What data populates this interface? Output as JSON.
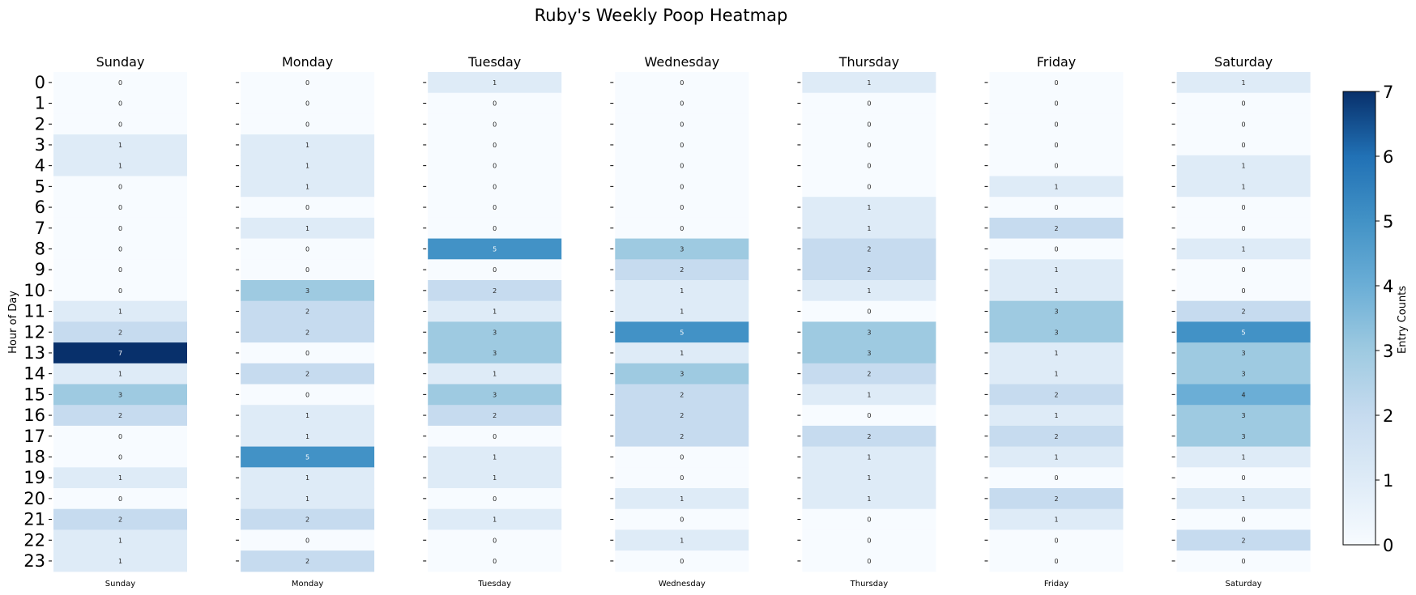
{
  "chart_data": {
    "type": "heatmap",
    "title": "Ruby's Weekly Poop Heatmap",
    "ylabel": "Hour of Day",
    "colorbar_label": "Entry Counts",
    "colorbar_range": [
      0,
      7
    ],
    "colorbar_ticks": [
      "0",
      "1",
      "2",
      "3",
      "4",
      "5",
      "6",
      "7"
    ],
    "hours": [
      "0",
      "1",
      "2",
      "3",
      "4",
      "5",
      "6",
      "7",
      "8",
      "9",
      "10",
      "11",
      "12",
      "13",
      "14",
      "15",
      "16",
      "17",
      "18",
      "19",
      "20",
      "21",
      "22",
      "23"
    ],
    "colormap": [
      "#f7fbff",
      "#deebf7",
      "#c6dbef",
      "#9ecae1",
      "#6baed6",
      "#4292c6",
      "#2171b5",
      "#08306b"
    ],
    "days": [
      {
        "name": "Sunday",
        "x_label": "Sunday",
        "values": [
          0,
          0,
          0,
          1,
          1,
          0,
          0,
          0,
          0,
          0,
          0,
          1,
          2,
          7,
          1,
          3,
          2,
          0,
          0,
          1,
          0,
          2,
          1,
          1
        ]
      },
      {
        "name": "Monday",
        "x_label": "Monday",
        "values": [
          0,
          0,
          0,
          1,
          1,
          1,
          0,
          1,
          0,
          0,
          3,
          2,
          2,
          0,
          2,
          0,
          1,
          1,
          5,
          1,
          1,
          2,
          0,
          2
        ]
      },
      {
        "name": "Tuesday",
        "x_label": "Tuesday",
        "values": [
          1,
          0,
          0,
          0,
          0,
          0,
          0,
          0,
          5,
          0,
          2,
          1,
          3,
          3,
          1,
          3,
          2,
          0,
          1,
          1,
          0,
          1,
          0,
          0
        ]
      },
      {
        "name": "Wednesday",
        "x_label": "Wednesday",
        "values": [
          0,
          0,
          0,
          0,
          0,
          0,
          0,
          0,
          3,
          2,
          1,
          1,
          5,
          1,
          3,
          2,
          2,
          2,
          0,
          0,
          1,
          0,
          1,
          0
        ]
      },
      {
        "name": "Thursday",
        "x_label": "Thursday",
        "values": [
          1,
          0,
          0,
          0,
          0,
          0,
          1,
          1,
          2,
          2,
          1,
          0,
          3,
          3,
          2,
          1,
          0,
          2,
          1,
          1,
          1,
          0,
          0,
          0
        ]
      },
      {
        "name": "Friday",
        "x_label": "Friday",
        "values": [
          0,
          0,
          0,
          0,
          0,
          1,
          0,
          2,
          0,
          1,
          1,
          3,
          3,
          1,
          1,
          2,
          1,
          2,
          1,
          0,
          2,
          1,
          0,
          0
        ]
      },
      {
        "name": "Saturday",
        "x_label": "Saturday",
        "values": [
          1,
          0,
          0,
          0,
          1,
          1,
          0,
          0,
          1,
          0,
          0,
          2,
          5,
          3,
          3,
          4,
          3,
          3,
          1,
          0,
          1,
          0,
          2,
          0
        ]
      }
    ]
  }
}
